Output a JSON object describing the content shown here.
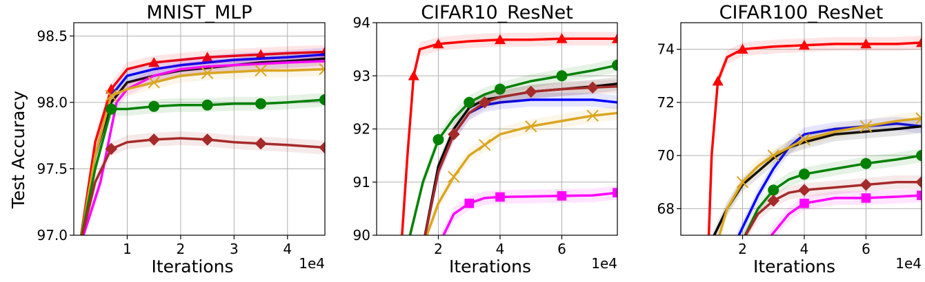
{
  "chart_data": [
    {
      "type": "line",
      "title": "MNIST_MLP",
      "xlabel": "Iterations",
      "ylabel": "Test Accuracy",
      "x_scale_label": "1e4",
      "xlim": [
        0.0,
        4.7
      ],
      "ylim": [
        97.0,
        98.6
      ],
      "xticks": [
        1,
        2,
        3,
        4
      ],
      "yticks": [
        97.0,
        97.5,
        98.0,
        98.5
      ],
      "ytick_labels": [
        "97.0",
        "97.5",
        "98.0",
        "98.5"
      ],
      "grid": true,
      "series": [
        {
          "color": "#ff0000",
          "marker": "triangle",
          "x": [
            0.1,
            0.4,
            0.7,
            1.0,
            1.5,
            2.0,
            2.5,
            3.0,
            3.5,
            4.0,
            4.7
          ],
          "y": [
            96.9,
            97.7,
            98.1,
            98.25,
            98.3,
            98.32,
            98.34,
            98.35,
            98.36,
            98.37,
            98.38
          ]
        },
        {
          "color": "#0000ff",
          "marker": "none",
          "x": [
            0.1,
            0.4,
            0.7,
            1.0,
            1.5,
            2.0,
            2.5,
            3.0,
            3.5,
            4.0,
            4.7
          ],
          "y": [
            96.9,
            97.6,
            98.05,
            98.2,
            98.25,
            98.28,
            98.3,
            98.32,
            98.33,
            98.34,
            98.36
          ]
        },
        {
          "color": "#000000",
          "marker": "none",
          "x": [
            0.1,
            0.4,
            0.7,
            1.0,
            1.5,
            2.0,
            2.5,
            3.0,
            3.5,
            4.0,
            4.7
          ],
          "y": [
            96.9,
            97.6,
            98.0,
            98.15,
            98.2,
            98.24,
            98.26,
            98.28,
            98.3,
            98.31,
            98.33
          ]
        },
        {
          "color": "#ff00ff",
          "marker": "none",
          "x": [
            0.1,
            0.5,
            0.8,
            1.0,
            1.5,
            2.0,
            2.5,
            3.0,
            3.5,
            4.0,
            4.7
          ],
          "y": [
            96.9,
            97.4,
            98.0,
            98.1,
            98.2,
            98.25,
            98.27,
            98.28,
            98.29,
            98.3,
            98.31
          ]
        },
        {
          "color": "#daa520",
          "marker": "x",
          "x": [
            0.1,
            0.4,
            0.7,
            1.0,
            1.5,
            2.0,
            2.5,
            3.0,
            3.5,
            4.0,
            4.7
          ],
          "y": [
            96.9,
            97.6,
            98.05,
            98.1,
            98.15,
            98.2,
            98.22,
            98.23,
            98.24,
            98.24,
            98.25
          ]
        },
        {
          "color": "#008000",
          "marker": "circle",
          "x": [
            0.1,
            0.4,
            0.7,
            1.0,
            1.5,
            2.0,
            2.5,
            3.0,
            3.5,
            4.0,
            4.7
          ],
          "y": [
            96.9,
            97.5,
            97.95,
            97.95,
            97.97,
            97.98,
            97.98,
            97.99,
            97.99,
            98.0,
            98.02
          ]
        },
        {
          "color": "#a52a2a",
          "marker": "diamond",
          "x": [
            0.1,
            0.4,
            0.7,
            1.0,
            1.5,
            2.0,
            2.5,
            3.0,
            3.5,
            4.0,
            4.7
          ],
          "y": [
            96.9,
            97.4,
            97.65,
            97.7,
            97.72,
            97.73,
            97.72,
            97.7,
            97.69,
            97.68,
            97.66
          ]
        }
      ]
    },
    {
      "type": "line",
      "title": "CIFAR10_ResNet",
      "xlabel": "Iterations",
      "ylabel": "",
      "x_scale_label": "1e4",
      "xlim": [
        0.0,
        7.8
      ],
      "ylim": [
        90.0,
        94.0
      ],
      "xticks": [
        2,
        4,
        6
      ],
      "yticks": [
        90,
        91,
        92,
        93,
        94
      ],
      "ytick_labels": [
        "90",
        "91",
        "92",
        "93",
        "94"
      ],
      "grid": true,
      "series": [
        {
          "color": "#ff0000",
          "marker": "triangle",
          "x": [
            0.8,
            1.0,
            1.2,
            1.4,
            2.0,
            3.0,
            4.0,
            5.0,
            6.0,
            7.0,
            7.8
          ],
          "y": [
            89.8,
            91.5,
            93.0,
            93.5,
            93.6,
            93.65,
            93.68,
            93.68,
            93.7,
            93.7,
            93.7
          ]
        },
        {
          "color": "#0000ff",
          "marker": "none",
          "x": [
            1.5,
            2.0,
            2.5,
            3.0,
            3.5,
            4.0,
            5.0,
            6.0,
            7.0,
            7.8
          ],
          "y": [
            89.8,
            91.2,
            91.9,
            92.3,
            92.45,
            92.5,
            92.55,
            92.55,
            92.55,
            92.5
          ]
        },
        {
          "color": "#000000",
          "marker": "none",
          "x": [
            1.5,
            2.0,
            2.5,
            3.0,
            3.5,
            4.0,
            5.0,
            6.0,
            7.0,
            7.8
          ],
          "y": [
            89.8,
            91.3,
            92.0,
            92.4,
            92.55,
            92.6,
            92.7,
            92.75,
            92.8,
            92.85
          ]
        },
        {
          "color": "#ff00ff",
          "marker": "square",
          "x": [
            2.0,
            2.5,
            3.0,
            3.5,
            4.0,
            5.0,
            6.0,
            7.0,
            7.8
          ],
          "y": [
            89.8,
            90.4,
            90.6,
            90.7,
            90.72,
            90.73,
            90.74,
            90.75,
            90.8
          ]
        },
        {
          "color": "#daa520",
          "marker": "x",
          "x": [
            1.5,
            2.0,
            2.5,
            3.0,
            3.5,
            4.0,
            5.0,
            6.0,
            7.0,
            7.8
          ],
          "y": [
            89.8,
            90.6,
            91.1,
            91.5,
            91.7,
            91.9,
            92.05,
            92.15,
            92.25,
            92.3
          ]
        },
        {
          "color": "#008000",
          "marker": "circle",
          "x": [
            1.0,
            1.5,
            2.0,
            2.5,
            3.0,
            3.5,
            4.0,
            5.0,
            6.0,
            7.0,
            7.8
          ],
          "y": [
            89.8,
            91.0,
            91.8,
            92.2,
            92.5,
            92.65,
            92.75,
            92.9,
            93.0,
            93.1,
            93.2
          ]
        },
        {
          "color": "#a52a2a",
          "marker": "diamond",
          "x": [
            1.5,
            2.0,
            2.5,
            3.0,
            3.5,
            4.0,
            5.0,
            6.0,
            7.0,
            7.8
          ],
          "y": [
            89.8,
            91.2,
            91.9,
            92.3,
            92.5,
            92.6,
            92.7,
            92.75,
            92.78,
            92.8
          ]
        }
      ]
    },
    {
      "type": "line",
      "title": "CIFAR100_ResNet",
      "xlabel": "Iterations",
      "ylabel": "",
      "x_scale_label": "1e4",
      "xlim": [
        0.0,
        7.8
      ],
      "ylim": [
        67.0,
        75.0
      ],
      "xticks": [
        2,
        4,
        6
      ],
      "yticks": [
        68,
        70,
        72,
        74
      ],
      "ytick_labels": [
        "68",
        "70",
        "72",
        "74"
      ],
      "grid": true,
      "series": [
        {
          "color": "#ff0000",
          "marker": "triangle",
          "x": [
            0.9,
            1.0,
            1.2,
            1.5,
            2.0,
            3.0,
            4.0,
            5.0,
            6.0,
            7.0,
            7.8
          ],
          "y": [
            66.8,
            70.0,
            72.8,
            73.7,
            74.0,
            74.1,
            74.15,
            74.2,
            74.2,
            74.2,
            74.25
          ]
        },
        {
          "color": "#0000ff",
          "marker": "none",
          "x": [
            1.8,
            2.5,
            3.0,
            3.5,
            4.0,
            5.0,
            6.0,
            7.0,
            7.8
          ],
          "y": [
            66.8,
            68.5,
            69.5,
            70.3,
            70.8,
            71.0,
            71.1,
            71.2,
            71.1
          ]
        },
        {
          "color": "#000000",
          "marker": "none",
          "x": [
            1.0,
            1.5,
            2.0,
            2.5,
            3.0,
            3.5,
            4.0,
            5.0,
            6.0,
            7.0,
            7.8
          ],
          "y": [
            66.8,
            68.0,
            68.9,
            69.4,
            69.9,
            70.3,
            70.5,
            70.8,
            70.9,
            71.0,
            71.1
          ]
        },
        {
          "color": "#ff00ff",
          "marker": "square",
          "x": [
            2.8,
            3.5,
            4.0,
            5.0,
            6.0,
            7.0,
            7.8
          ],
          "y": [
            66.8,
            67.8,
            68.2,
            68.4,
            68.4,
            68.45,
            68.5
          ]
        },
        {
          "color": "#daa520",
          "marker": "x",
          "x": [
            1.2,
            1.5,
            2.0,
            2.5,
            3.0,
            3.5,
            4.0,
            5.0,
            6.0,
            7.0,
            7.8
          ],
          "y": [
            66.8,
            68.0,
            69.0,
            69.6,
            70.0,
            70.3,
            70.6,
            70.9,
            71.1,
            71.3,
            71.4
          ]
        },
        {
          "color": "#008000",
          "marker": "circle",
          "x": [
            2.0,
            2.5,
            3.0,
            3.5,
            4.0,
            5.0,
            6.0,
            7.0,
            7.8
          ],
          "y": [
            66.8,
            68.0,
            68.7,
            69.1,
            69.3,
            69.5,
            69.7,
            69.85,
            70.0
          ]
        },
        {
          "color": "#a52a2a",
          "marker": "diamond",
          "x": [
            2.0,
            2.5,
            3.0,
            3.5,
            4.0,
            5.0,
            6.0,
            7.0,
            7.8
          ],
          "y": [
            66.8,
            67.8,
            68.3,
            68.6,
            68.7,
            68.8,
            68.9,
            69.0,
            69.0
          ]
        }
      ]
    }
  ]
}
